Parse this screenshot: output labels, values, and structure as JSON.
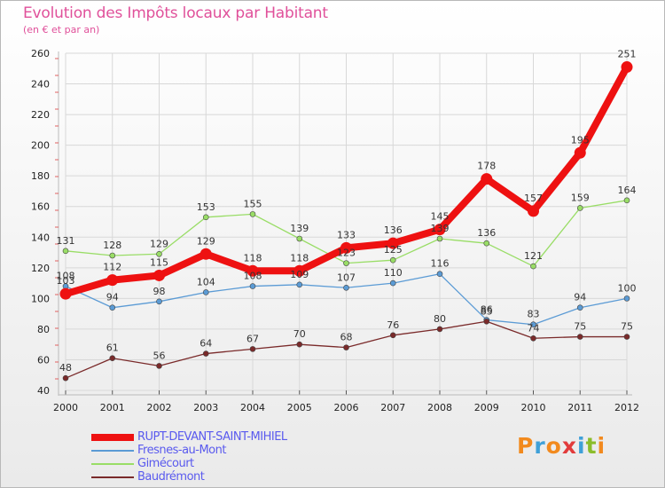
{
  "title": "Evolution des Impôts locaux par Habitant",
  "subtitle": "(en € et par an)",
  "logo": {
    "text": "Proxiti",
    "colors": [
      "#f28a1e",
      "#3fa0d8",
      "#f28a1e",
      "#e23b3b",
      "#3fa0d8",
      "#8bbd2b",
      "#f28a1e"
    ]
  },
  "chart_data": {
    "type": "line",
    "title": "Evolution des Impôts locaux par Habitant",
    "subtitle": "(en € et par an)",
    "xlabel": "",
    "ylabel": "",
    "x": [
      "2000",
      "2001",
      "2002",
      "2003",
      "2004",
      "2005",
      "2006",
      "2007",
      "2008",
      "2009",
      "2010",
      "2011",
      "2012"
    ],
    "ylim": [
      40,
      260
    ],
    "yticks": [
      40,
      60,
      80,
      100,
      120,
      140,
      160,
      180,
      200,
      220,
      240,
      260
    ],
    "grid": true,
    "legend_position": "bottom-left",
    "series": [
      {
        "name": "RUPT-DEVANT-SAINT-MIHIEL",
        "color": "#ee1111",
        "emphasis": true,
        "values": [
          103,
          112,
          115,
          129,
          118,
          118,
          133,
          136,
          145,
          178,
          157,
          195,
          251
        ]
      },
      {
        "name": "Fresnes-au-Mont",
        "color": "#5b9bd5",
        "values": [
          108,
          94,
          98,
          104,
          108,
          109,
          107,
          110,
          116,
          86,
          83,
          94,
          100
        ]
      },
      {
        "name": "Gimécourt",
        "color": "#99dd66",
        "values": [
          131,
          128,
          129,
          153,
          155,
          139,
          123,
          125,
          139,
          136,
          121,
          159,
          164
        ]
      },
      {
        "name": "Baudrémont",
        "color": "#7a2a2a",
        "values": [
          48,
          61,
          56,
          64,
          67,
          70,
          68,
          76,
          80,
          85,
          74,
          75,
          75
        ]
      }
    ]
  }
}
